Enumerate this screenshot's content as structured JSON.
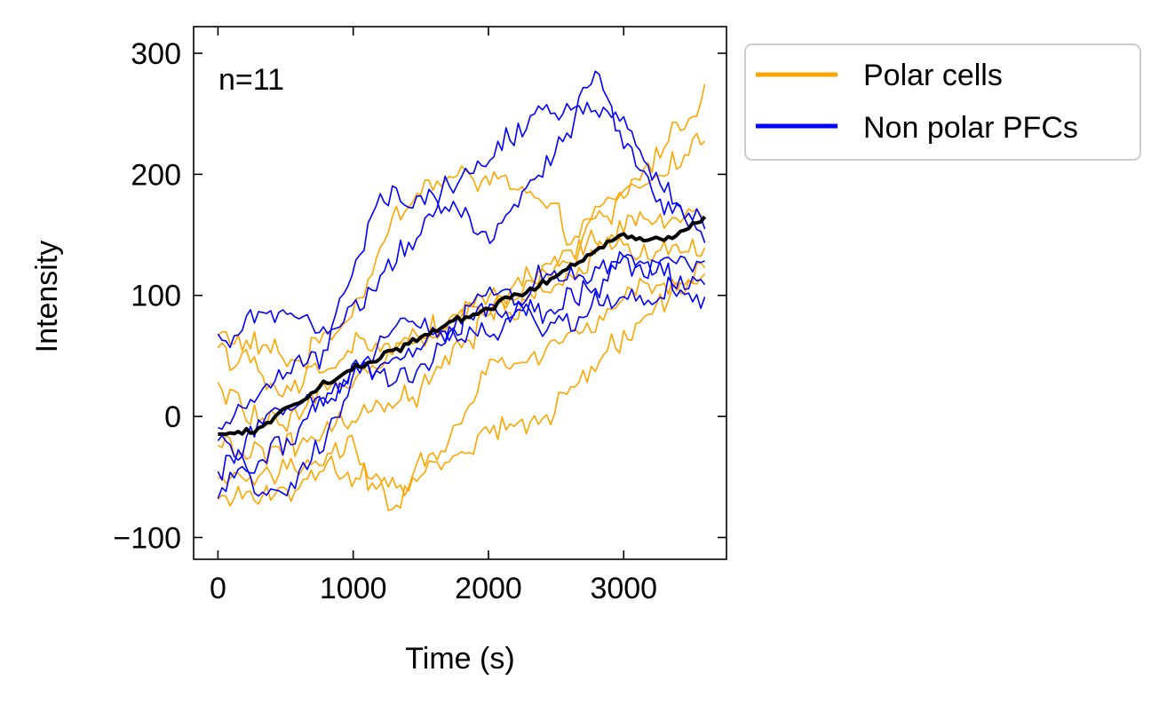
{
  "chart_data": {
    "type": "line",
    "xlabel": "Time (s)",
    "ylabel": "Intensity",
    "xlim": [
      -180,
      3760
    ],
    "ylim": [
      -118,
      322
    ],
    "xticks": [
      0,
      1000,
      2000,
      3000
    ],
    "xtick_labels": [
      "0",
      "1000",
      "2000",
      "3000"
    ],
    "yticks": [
      -100,
      0,
      100,
      200,
      300
    ],
    "ytick_labels": [
      "−100",
      "0",
      "100",
      "200",
      "300"
    ],
    "annotation": "n=11",
    "grid": false,
    "legend_position": "outside-upper-right",
    "legend": [
      {
        "label": "Polar cells",
        "color": "#ffa500"
      },
      {
        "label": "Non polar PFCs",
        "color": "#0000ff"
      }
    ],
    "x_start": 0,
    "x_step": 30,
    "num_points": 121,
    "series": [
      {
        "group": "polar",
        "color": "#ffa500",
        "keypoints": [
          [
            0,
            68
          ],
          [
            600,
            45
          ],
          [
            1000,
            90
          ],
          [
            1300,
            160
          ],
          [
            1500,
            190
          ],
          [
            2000,
            200
          ],
          [
            2300,
            180
          ],
          [
            2600,
            150
          ],
          [
            3000,
            180
          ],
          [
            3600,
            270
          ]
        ]
      },
      {
        "group": "polar",
        "color": "#ffa500",
        "keypoints": [
          [
            0,
            60
          ],
          [
            500,
            15
          ],
          [
            1000,
            60
          ],
          [
            1400,
            55
          ],
          [
            2000,
            95
          ],
          [
            2500,
            120
          ],
          [
            3000,
            185
          ],
          [
            3600,
            225
          ]
        ]
      },
      {
        "group": "polar",
        "color": "#ffa500",
        "keypoints": [
          [
            0,
            20
          ],
          [
            500,
            -15
          ],
          [
            1000,
            40
          ],
          [
            1500,
            70
          ],
          [
            2000,
            90
          ],
          [
            2500,
            130
          ],
          [
            3000,
            155
          ],
          [
            3600,
            170
          ]
        ]
      },
      {
        "group": "polar",
        "color": "#ffa500",
        "keypoints": [
          [
            0,
            -30
          ],
          [
            600,
            -25
          ],
          [
            1000,
            -5
          ],
          [
            1500,
            20
          ],
          [
            2000,
            80
          ],
          [
            2500,
            110
          ],
          [
            3000,
            140
          ],
          [
            3600,
            140
          ]
        ]
      },
      {
        "group": "polar",
        "color": "#ffa500",
        "keypoints": [
          [
            0,
            -55
          ],
          [
            400,
            -45
          ],
          [
            1000,
            -30
          ],
          [
            1300,
            -80
          ],
          [
            1600,
            -40
          ],
          [
            2000,
            -10
          ],
          [
            2400,
            -5
          ],
          [
            3000,
            70
          ],
          [
            3600,
            120
          ]
        ]
      },
      {
        "group": "polar",
        "color": "#ffa500",
        "keypoints": [
          [
            0,
            -70
          ],
          [
            300,
            -70
          ],
          [
            800,
            -40
          ],
          [
            1200,
            -60
          ],
          [
            1600,
            -35
          ],
          [
            2000,
            40
          ],
          [
            2500,
            60
          ],
          [
            3000,
            100
          ],
          [
            3600,
            110
          ]
        ]
      },
      {
        "group": "nonpolar",
        "color": "#0000ff",
        "keypoints": [
          [
            0,
            55
          ],
          [
            400,
            90
          ],
          [
            800,
            70
          ],
          [
            1200,
            105
          ],
          [
            1600,
            175
          ],
          [
            2000,
            215
          ],
          [
            2400,
            245
          ],
          [
            2800,
            255
          ],
          [
            3000,
            245
          ],
          [
            3300,
            190
          ],
          [
            3600,
            140
          ]
        ]
      },
      {
        "group": "nonpolar",
        "color": "#0000ff",
        "keypoints": [
          [
            0,
            -20
          ],
          [
            400,
            30
          ],
          [
            800,
            60
          ],
          [
            1200,
            180
          ],
          [
            1600,
            175
          ],
          [
            2000,
            150
          ],
          [
            2400,
            200
          ],
          [
            2800,
            280
          ],
          [
            3000,
            225
          ],
          [
            3300,
            175
          ],
          [
            3600,
            160
          ]
        ]
      },
      {
        "group": "nonpolar",
        "color": "#0000ff",
        "keypoints": [
          [
            0,
            -40
          ],
          [
            400,
            0
          ],
          [
            1000,
            30
          ],
          [
            1500,
            60
          ],
          [
            2000,
            95
          ],
          [
            2500,
            75
          ],
          [
            3000,
            100
          ],
          [
            3600,
            115
          ]
        ]
      },
      {
        "group": "nonpolar",
        "color": "#0000ff",
        "keypoints": [
          [
            0,
            -60
          ],
          [
            400,
            -30
          ],
          [
            1000,
            40
          ],
          [
            1400,
            80
          ],
          [
            2000,
            70
          ],
          [
            2500,
            120
          ],
          [
            3000,
            130
          ],
          [
            3600,
            125
          ]
        ]
      },
      {
        "group": "nonpolar",
        "color": "#0000ff",
        "keypoints": [
          [
            0,
            -10
          ],
          [
            300,
            -60
          ],
          [
            500,
            -70
          ],
          [
            1000,
            30
          ],
          [
            1500,
            40
          ],
          [
            2000,
            110
          ],
          [
            2500,
            80
          ],
          [
            3000,
            135
          ],
          [
            3600,
            90
          ]
        ]
      },
      {
        "group": "mean",
        "color": "#000000",
        "keypoints": [
          [
            0,
            -15
          ],
          [
            300,
            -10
          ],
          [
            500,
            5
          ],
          [
            1000,
            40
          ],
          [
            1500,
            65
          ],
          [
            2000,
            90
          ],
          [
            2500,
            115
          ],
          [
            3000,
            150
          ],
          [
            3300,
            145
          ],
          [
            3600,
            165
          ]
        ]
      }
    ]
  }
}
